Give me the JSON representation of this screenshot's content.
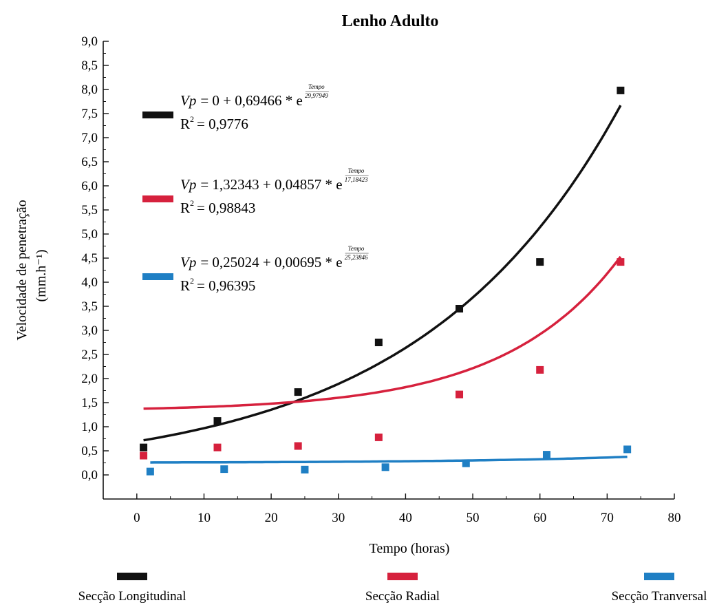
{
  "chart_data": {
    "type": "scatter",
    "title": "Lenho Adulto",
    "xlabel": "Tempo (horas)",
    "ylabel": "Velocidade de penetração",
    "ylabel_unit": "(mm.h⁻¹)",
    "xlim": [
      -5,
      80
    ],
    "ylim": [
      -0.5,
      9.0
    ],
    "x_ticks": [
      0,
      10,
      20,
      30,
      40,
      50,
      60,
      70,
      80
    ],
    "x_tick_labels": [
      "0",
      "10",
      "20",
      "30",
      "40",
      "50",
      "60",
      "70",
      "80"
    ],
    "y_ticks": [
      0.0,
      0.5,
      1.0,
      1.5,
      2.0,
      2.5,
      3.0,
      3.5,
      4.0,
      4.5,
      5.0,
      5.5,
      6.0,
      6.5,
      7.0,
      7.5,
      8.0,
      8.5,
      9.0
    ],
    "y_tick_labels": [
      "0,0",
      "0,5",
      "1,0",
      "1,5",
      "2,0",
      "2,5",
      "3,0",
      "3,5",
      "4,0",
      "4,5",
      "5,0",
      "5,5",
      "6,0",
      "6,5",
      "7,0",
      "7,5",
      "8,0",
      "8,5",
      "9,0"
    ],
    "grid": false,
    "legend_position": "bottom",
    "series": [
      {
        "name": "Secção Longitudinal",
        "color": "#111111",
        "x": [
          1,
          12,
          24,
          36,
          48,
          60,
          72
        ],
        "y": [
          0.57,
          1.12,
          1.72,
          2.75,
          3.45,
          4.42,
          7.98
        ],
        "fit": {
          "y0": 0,
          "a": 0.69466,
          "t": 29.97949
        },
        "equation": {
          "lhs": "Vp",
          "rhs": "= 0 + 0,69466 * e",
          "exp_num": "Tempo",
          "exp_den": "29,97949",
          "r2_label": "R",
          "r2_value": "= 0,9776"
        }
      },
      {
        "name": "Secção Radial",
        "color": "#d6213d",
        "x": [
          1,
          12,
          24,
          36,
          48,
          60,
          72
        ],
        "y": [
          0.4,
          0.57,
          0.6,
          0.78,
          1.67,
          2.18,
          4.42
        ],
        "fit": {
          "y0": 1.32343,
          "a": 0.04857,
          "t": 17.18423
        },
        "equation": {
          "lhs": "Vp",
          "rhs": "= 1,32343 + 0,04857 * e",
          "exp_num": "Tempo",
          "exp_den": "17,18423",
          "r2_label": "R",
          "r2_value": "= 0,98843"
        }
      },
      {
        "name": "Secção Tranversal",
        "color": "#1f7fc4",
        "x": [
          2,
          13,
          25,
          37,
          49,
          61,
          73
        ],
        "y": [
          0.07,
          0.12,
          0.11,
          0.16,
          0.24,
          0.42,
          0.53
        ],
        "fit": {
          "y0": 0.25024,
          "a": 0.00695,
          "t": 25.23846
        },
        "equation": {
          "lhs": "Vp",
          "rhs": "= 0,25024 + 0,00695 * e",
          "exp_num": "Tempo",
          "exp_den": "25,23846",
          "r2_label": "R",
          "r2_value": "= 0,96395"
        }
      }
    ]
  }
}
